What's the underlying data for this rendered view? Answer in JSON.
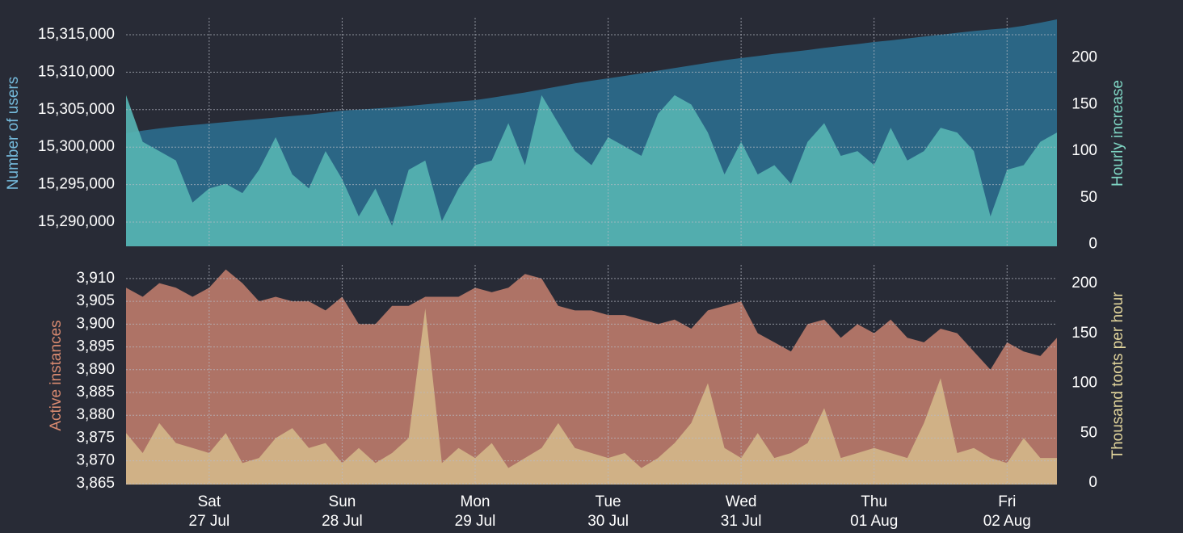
{
  "chart_data": [
    {
      "type": "area",
      "ylabel": "Number of users",
      "y2label": "Hourly increase",
      "ylim": [
        15286770,
        15317260
      ],
      "yticks": [
        {
          "value": 15290000,
          "label": "15,290,000"
        },
        {
          "value": 15295000,
          "label": "15,295,000"
        },
        {
          "value": 15300000,
          "label": "15,300,000"
        },
        {
          "value": 15305000,
          "label": "15,305,000"
        },
        {
          "value": 15310000,
          "label": "15,310,000"
        },
        {
          "value": 15315000,
          "label": "15,315,000"
        }
      ],
      "y2lim": [
        -2,
        243
      ],
      "y2ticks": [
        0,
        50,
        100,
        150,
        200
      ],
      "grid": true,
      "series": [
        {
          "name": "Number of users",
          "color": "#2b6685",
          "axis": "y",
          "values": [
            15301860,
            15302200,
            15302500,
            15302750,
            15302950,
            15303150,
            15303350,
            15303550,
            15303750,
            15303950,
            15304150,
            15304350,
            15304600,
            15304870,
            15305000,
            15305150,
            15305300,
            15305500,
            15305700,
            15305900,
            15306100,
            15306270,
            15306600,
            15306950,
            15307300,
            15307700,
            15308100,
            15308500,
            15308850,
            15309180,
            15309500,
            15309850,
            15310200,
            15310550,
            15310900,
            15311250,
            15311600,
            15311880,
            15312150,
            15312450,
            15312700,
            15312950,
            15313250,
            15313500,
            15313750,
            15314030,
            15314250,
            15314500,
            15314750,
            15315000,
            15315250,
            15315500,
            15315700,
            15315870,
            15316200,
            15316600,
            15317050
          ]
        },
        {
          "name": "Hourly increase",
          "color": "#56b3b2",
          "axis": "y2",
          "values": [
            160,
            110,
            100,
            90,
            45,
            60,
            65,
            55,
            80,
            115,
            75,
            60,
            100,
            70,
            30,
            60,
            20,
            80,
            90,
            25,
            60,
            85,
            90,
            130,
            85,
            160,
            130,
            100,
            85,
            115,
            105,
            95,
            140,
            160,
            150,
            120,
            75,
            110,
            75,
            85,
            65,
            110,
            130,
            95,
            100,
            85,
            125,
            90,
            100,
            125,
            120,
            100,
            30,
            80,
            85,
            110,
            120
          ]
        }
      ]
    },
    {
      "type": "area",
      "ylabel": "Active instances",
      "y2label": "Thousand toots per hour",
      "categories": [
        null,
        null,
        null,
        null,
        null,
        [
          "Sat",
          "27 Jul"
        ],
        null,
        null,
        null,
        null,
        null,
        null,
        null,
        [
          "Sun",
          "28 Jul"
        ],
        null,
        null,
        null,
        null,
        null,
        null,
        null,
        [
          "Mon",
          "29 Jul"
        ],
        null,
        null,
        null,
        null,
        null,
        null,
        null,
        [
          "Tue",
          "30 Jul"
        ],
        null,
        null,
        null,
        null,
        null,
        null,
        null,
        [
          "Wed",
          "31 Jul"
        ],
        null,
        null,
        null,
        null,
        null,
        null,
        null,
        [
          "Thu",
          "01 Aug"
        ],
        null,
        null,
        null,
        null,
        null,
        null,
        null,
        [
          "Fri",
          "02 Aug"
        ],
        null,
        null,
        null
      ],
      "ylim": [
        3864.8,
        3913
      ],
      "yticks": [
        {
          "value": 3865,
          "label": "3,865"
        },
        {
          "value": 3870,
          "label": "3,870"
        },
        {
          "value": 3875,
          "label": "3,875"
        },
        {
          "value": 3880,
          "label": "3,880"
        },
        {
          "value": 3885,
          "label": "3,885"
        },
        {
          "value": 3890,
          "label": "3,890"
        },
        {
          "value": 3895,
          "label": "3,895"
        },
        {
          "value": 3900,
          "label": "3,900"
        },
        {
          "value": 3905,
          "label": "3,905"
        },
        {
          "value": 3910,
          "label": "3,910"
        }
      ],
      "y2lim": [
        -1.6,
        218.6
      ],
      "y2ticks": [
        0,
        50,
        100,
        150,
        200
      ],
      "grid": true,
      "series": [
        {
          "name": "Active instances",
          "color": "#ae7366",
          "axis": "y",
          "values": [
            3908,
            3906,
            3909,
            3908,
            3906,
            3908,
            3912,
            3909,
            3905,
            3906,
            3905,
            3905,
            3903,
            3906,
            3900,
            3900,
            3904,
            3904,
            3906,
            3906,
            3906,
            3908,
            3907,
            3908,
            3911,
            3910,
            3904,
            3903,
            3903,
            3902,
            3902,
            3901,
            3900,
            3901,
            3899,
            3903,
            3904,
            3905,
            3898,
            3896,
            3894,
            3900,
            3901,
            3897,
            3900,
            3898,
            3901,
            3897,
            3896,
            3899,
            3898,
            3894,
            3890,
            3896,
            3894,
            3893,
            3897
          ]
        },
        {
          "name": "Thousand toots per hour",
          "color": "#d3b689",
          "axis": "y2",
          "values": [
            50,
            30,
            60,
            40,
            35,
            30,
            50,
            20,
            25,
            45,
            55,
            35,
            40,
            20,
            35,
            20,
            30,
            45,
            175,
            20,
            35,
            25,
            40,
            15,
            25,
            35,
            60,
            35,
            30,
            25,
            30,
            15,
            25,
            40,
            60,
            100,
            35,
            25,
            50,
            25,
            30,
            40,
            75,
            25,
            30,
            35,
            30,
            25,
            60,
            105,
            30,
            35,
            25,
            20,
            45,
            25,
            25
          ]
        }
      ]
    }
  ]
}
